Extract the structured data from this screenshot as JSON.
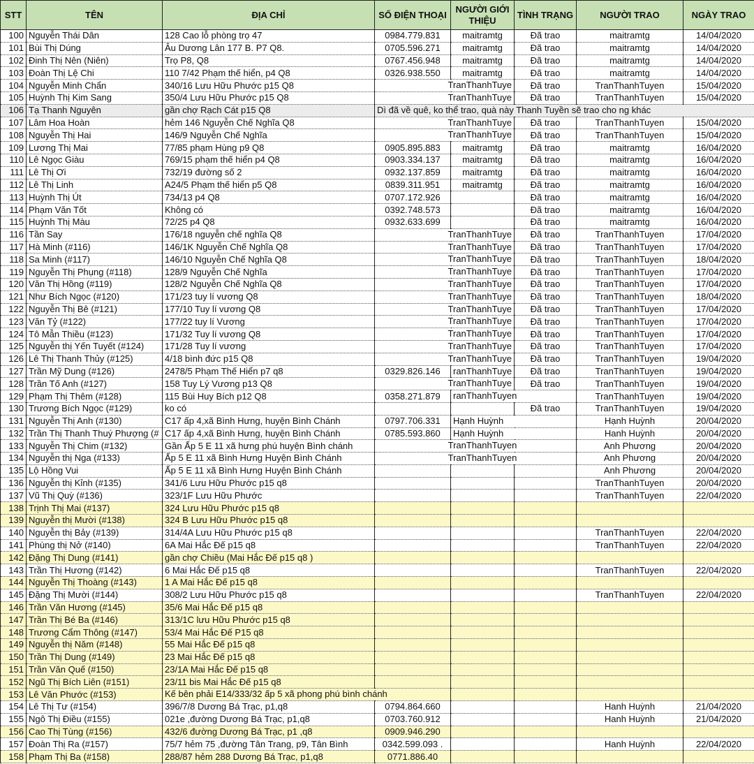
{
  "headers": [
    "STT",
    "TÊN",
    "ĐỊA CHỈ",
    "SỐ ĐIỆN THOẠI",
    "NGƯỜI GIỚI THIỆU",
    "TÌNH TRẠNG",
    "NGƯỜI TRAO",
    "NGÀY TRAO"
  ],
  "colors": {
    "header_bg": "#c6e0b4",
    "highlight_yellow": "#fdf9c6",
    "highlight_gray": "#ececec"
  },
  "rows": [
    {
      "stt": "100",
      "name": "Nguyễn Thái  Dân",
      "address": "128 Cao lỗ phòng trọ 47",
      "phone": "0984.779.831",
      "referrer": "maitramtg",
      "status": "Đã trao",
      "giver": "maitramtg",
      "date": "14/04/2020",
      "hl": ""
    },
    {
      "stt": "101",
      "name": " Bùi Thị Dúng",
      "address": "Âu Dương Lân 177 B. P7 Q8.",
      "phone": "0705.596.271",
      "referrer": "maitramtg",
      "status": "Đã trao",
      "giver": "maitramtg",
      "date": "14/04/2020",
      "hl": ""
    },
    {
      "stt": "102",
      "name": " Đinh Thị Nên (Niên)",
      "address": "Trọ P8, Q8",
      "phone": "0767.456.948",
      "referrer": "maitramtg",
      "status": "Đã trao",
      "giver": "maitramtg",
      "date": "14/04/2020",
      "hl": ""
    },
    {
      "stt": "103",
      "name": "Đoàn Thị Lệ Chi",
      "address": "110 7/42 Phạm thế hiển, p4 Q8",
      "phone": "0326.938.550",
      "referrer": "maitramtg",
      "status": "Đã trao",
      "giver": "maitramtg",
      "date": "14/04/2020",
      "hl": ""
    },
    {
      "stt": "104",
      "name": "Nguyễn Minh Chẩn",
      "address": "340/16 Lưu Hữu Phước p15 Q8",
      "phone": "",
      "referrer": "TranThanhTuye",
      "status": "Đã trao",
      "giver": "TranThanhTuyen",
      "date": "15/04/2020",
      "hl": ""
    },
    {
      "stt": "105",
      "name": "Huỳnh Thị Kim Sang",
      "address": "350/4 Lưu Hữu Phước p15 Q8",
      "phone": "",
      "referrer": "TranThanhTuye",
      "status": "Đã trao",
      "giver": "TranThanhTuyen",
      "date": "15/04/2020",
      "hl": ""
    },
    {
      "stt": "106",
      "name": "Tạ Thanh Nguyên",
      "address": "gần chợ Rạch Cát p15 Q8",
      "note": "Dì đã về quê, ko thể trao, quà này Thanh Tuyền sẽ trao cho ng khác",
      "hl": "g"
    },
    {
      "stt": "107",
      "name": "Lâm Hoa Hoàn",
      "address": "hẻm 146 Nguyễn Chế Nghĩa Q8",
      "phone": "",
      "referrer": "TranThanhTuye",
      "status": "Đã trao",
      "giver": "TranThanhTuyen",
      "date": "15/04/2020",
      "hl": ""
    },
    {
      "stt": "108",
      "name": "Nguyễn Thị Hai",
      "address": "146/9 Nguyễn Chế Nghĩa",
      "phone": "",
      "referrer": "TranThanhTuye",
      "status": "Đã trao",
      "giver": "TranThanhTuyen",
      "date": "15/04/2020",
      "hl": ""
    },
    {
      "stt": "109",
      "name": "Lương Thị Mai",
      "address": "77/85 phạm Hùng p9 Q8",
      "phone": "0905.895.883",
      "referrer": "maitramtg",
      "status": "Đã trao",
      "giver": "maitramtg",
      "date": "16/04/2020",
      "hl": ""
    },
    {
      "stt": "110",
      "name": "Lê Ngọc Giàu",
      "address": "769/15 phạm thế hiển p4 Q8",
      "phone": "0903.334.137",
      "referrer": "maitramtg",
      "status": "Đã trao",
      "giver": "maitramtg",
      "date": "16/04/2020",
      "hl": ""
    },
    {
      "stt": "111",
      "name": "Lê Thị Ơi",
      "address": "732/19 đường số 2",
      "phone": "0932.137.859",
      "referrer": "maitramtg",
      "status": "Đã trao",
      "giver": "maitramtg",
      "date": "16/04/2020",
      "hl": ""
    },
    {
      "stt": "112",
      "name": "Lê Thị Linh",
      "address": "A24/5 Phạm thế hiển p5 Q8",
      "phone": "0839.311.951",
      "referrer": "maitramtg",
      "status": "Đã trao",
      "giver": "maitramtg",
      "date": "16/04/2020",
      "hl": ""
    },
    {
      "stt": "113",
      "name": "Huỳnh Thị Út",
      "address": "734/13 p4 Q8",
      "phone": "0707.172.926",
      "referrer": "",
      "status": "Đã trao",
      "giver": "maitramtg",
      "date": "16/04/2020",
      "hl": ""
    },
    {
      "stt": "114",
      "name": "Phạm Văn Tốt",
      "address": "Không có",
      "phone": "0392.748.573",
      "referrer": "",
      "status": "Đã trao",
      "giver": "maitramtg",
      "date": "16/04/2020",
      "hl": ""
    },
    {
      "stt": "115",
      "name": "Huỳnh Thị Màu",
      "address": " 72/25 p4 Q8",
      "phone": "0932.633.699",
      "referrer": "",
      "status": "Đã trao",
      "giver": "maitramtg",
      "date": "16/04/2020",
      "hl": ""
    },
    {
      "stt": "116",
      "name": "Tần Say",
      "address": "176/18 nguyễn chế nghĩa Q8",
      "phone": "",
      "referrer": "TranThanhTuye",
      "status": "Đã trao",
      "giver": "TranThanhTuyen",
      "date": "17/04/2020",
      "hl": ""
    },
    {
      "stt": "117",
      "name": "Hà Minh (#116)",
      "address": "146/1K Nguyễn Chế Nghĩa Q8",
      "phone": "",
      "referrer": "TranThanhTuye",
      "status": "Đã trao",
      "giver": "TranThanhTuyen",
      "date": "17/04/2020",
      "hl": ""
    },
    {
      "stt": "118",
      "name": "Sa Minh (#117)",
      "address": "146/10 Nguyễn Chế Nghĩa Q8",
      "phone": "",
      "referrer": "TranThanhTuye",
      "status": "Đã trao",
      "giver": "TranThanhTuyen",
      "date": "18/04/2020",
      "hl": ""
    },
    {
      "stt": "119",
      "name": "Nguyễn Thị Phụng (#118)",
      "address": "128/9 Nguyễn Chế Nghĩa",
      "phone": "",
      "referrer": "TranThanhTuye",
      "status": "Đã trao",
      "giver": "TranThanhTuyen",
      "date": "17/04/2020",
      "hl": ""
    },
    {
      "stt": "120",
      "name": "Văn Thị Hồng (#119)",
      "address": "128/2 Nguyễn Chế Nghĩa Q8",
      "phone": "",
      "referrer": "TranThanhTuye",
      "status": "Đã trao",
      "giver": "TranThanhTuyen",
      "date": "17/04/2020",
      "hl": ""
    },
    {
      "stt": "121",
      "name": "Như Bích Ngọc (#120)",
      "address": "171/23 tuy lí vương Q8",
      "phone": "",
      "referrer": "TranThanhTuye",
      "status": "Đã trao",
      "giver": "TranThanhTuyen",
      "date": "18/04/2020",
      "hl": ""
    },
    {
      "stt": "122",
      "name": " Nguyễn Thị Bê (#121)",
      "address": "177/10 Tuy lí vương Q8",
      "phone": "",
      "referrer": "TranThanhTuye",
      "status": "Đã trao",
      "giver": "TranThanhTuyen",
      "date": "17/04/2020",
      "hl": ""
    },
    {
      "stt": "123",
      "name": "Văn Tỷ (#122)",
      "address": "177/22 tuy lí Vương",
      "phone": "",
      "referrer": "TranThanhTuye",
      "status": "Đã trao",
      "giver": "TranThanhTuyen",
      "date": "17/04/2020",
      "hl": ""
    },
    {
      "stt": "124",
      "name": "Tô Mẫn Thiều (#123)",
      "address": "171/32 Tuy lí vương Q8",
      "phone": "",
      "referrer": "TranThanhTuye",
      "status": "Đã trao",
      "giver": "TranThanhTuyen",
      "date": "17/04/2020",
      "hl": ""
    },
    {
      "stt": "125",
      "name": "Nguyễn thị Yến Tuyết (#124)",
      "address": "171/28 Tuy lí vương",
      "phone": "",
      "referrer": "TranThanhTuye",
      "status": "Đã trao",
      "giver": "TranThanhTuyen",
      "date": "17/04/2020",
      "hl": ""
    },
    {
      "stt": "126",
      "name": "Lê Thị Thanh Thủy (#125)",
      "address": "4/18 bình đức p15 Q8",
      "phone": "",
      "referrer": "TranThanhTuye",
      "status": "Đã trao",
      "giver": "TranThanhTuyen",
      "date": "19/04/2020",
      "hl": ""
    },
    {
      "stt": "127",
      "name": "Trần Mỹ Dung (#126)",
      "address": "2478/5 Phạm Thế Hiển p7 q8",
      "phone": "0329.826.146",
      "referrer": "ranThanhTuye",
      "status": "Đã trao",
      "giver": "TranThanhTuyen",
      "date": "19/04/2020",
      "hl": ""
    },
    {
      "stt": "128",
      "name": "Trần Tố Anh (#127)",
      "address": "158 Tuy Lý Vương p13 Q8",
      "phone": "",
      "referrer": "TranThanhTuye",
      "status": "Đã trao",
      "giver": "TranThanhTuyen",
      "date": "19/04/2020",
      "hl": ""
    },
    {
      "stt": "129",
      "name": "Phạm Thị Thêm (#128)",
      "address": "115 Bùi Huy Bích p12 Q8",
      "phone": "0358.271.879",
      "referrer": "ranThanhTuyen",
      "status": "",
      "giver": "TranThanhTuyen",
      "date": "19/04/2020",
      "hl": ""
    },
    {
      "stt": "130",
      "name": "Trương Bích Ngọc (#129)",
      "address": "ko có",
      "phone": "",
      "referrer": "",
      "status": "Đã trao",
      "giver": "TranThanhTuyen",
      "date": "19/04/2020",
      "hl": ""
    },
    {
      "stt": "131",
      "name": "Nguyễn Thị Anh (#130)",
      "address": "C17 ấp 4,xã Bình Hưng, huyện Bình Chánh",
      "phone": "0797.706.331",
      "referrer": "Hạnh Huỳnh",
      "status": "",
      "giver": "Hạnh Huỳnh",
      "date": "20/04/2020",
      "hl": ""
    },
    {
      "stt": "132",
      "name": "Trần Thị Thanh Thuý Phượng (#",
      "address": "C17 ấp 4,xã Bình Hưng, huyện Bình Chánh",
      "phone": "0785.593.860",
      "referrer": "Hạnh Huỳnh",
      "status": "",
      "giver": "Hanh Huỳnh",
      "date": "20/04/2020",
      "hl": ""
    },
    {
      "stt": "133",
      "name": "Nguyễn Thị Chim (#132)",
      "address": "Gần Ấp 5 E 11 xã hưng phú huyện Bình chánh",
      "phone": "",
      "referrer": "TranThanhTuyen",
      "status": "",
      "giver": "Anh Phương",
      "date": "20/04/2020",
      "hl": ""
    },
    {
      "stt": "134",
      "name": "Nguyễn thị Nga (#133)",
      "address": "Ấp 5 E 11 xã Bình Hưng Huyện Bình Chánh",
      "phone": "",
      "referrer": "TranThanhTuyen",
      "status": "",
      "giver": "Anh Phương",
      "date": "20/04/2020",
      "hl": ""
    },
    {
      "stt": "135",
      "name": "Lộ Hồng Vui",
      "address": "Ấp 5 E 11 xã Bình Hưng Huyện Bình Chánh",
      "phone": "",
      "referrer": "",
      "status": "",
      "giver": "Anh Phương",
      "date": "20/04/2020",
      "hl": ""
    },
    {
      "stt": "136",
      "name": "Nguyễn thị Kỉnh (#135)",
      "address": "341/6 Lưu Hữu Phước p15 q8",
      "phone": "",
      "referrer": "",
      "status": "",
      "giver": "TranThanhTuyen",
      "date": "20/04/2020",
      "hl": ""
    },
    {
      "stt": "137",
      "name": "Vũ Thị Quỳ (#136)",
      "address": "323/1F Lưu Hữu Phước",
      "phone": "",
      "referrer": "",
      "status": "",
      "giver": "TranThanhTuyen",
      "date": "22/04/2020",
      "hl": ""
    },
    {
      "stt": "138",
      "name": "Trịnh Thị Mai (#137)",
      "address": "324 Lưu Hữu Phước p15 q8",
      "phone": "",
      "referrer": "",
      "status": "",
      "giver": "",
      "date": "",
      "hl": "y"
    },
    {
      "stt": "139",
      "name": "Nguyễn thị Mười (#138)",
      "address": "324 B Lưu Hữu Phước p15 q8",
      "phone": "",
      "referrer": "",
      "status": "",
      "giver": "",
      "date": "",
      "hl": "y"
    },
    {
      "stt": "140",
      "name": "Nguyễn thị Bảy (#139)",
      "address": "314/4A Lưu Hữu Phước p15 q8",
      "phone": "",
      "referrer": "",
      "status": "",
      "giver": "TranThanhTuyen",
      "date": "22/04/2020",
      "hl": ""
    },
    {
      "stt": "141",
      "name": "Phùng thị Nở (#140)",
      "address": "6A Mai Hắc Đế p15 q8",
      "phone": "",
      "referrer": "",
      "status": "",
      "giver": "TranThanhTuyen",
      "date": "22/04/2020",
      "hl": ""
    },
    {
      "stt": "142",
      "name": "Đặng Thị Dung (#141)",
      "address": "gần chợ Chiều (Mai Hắc Đế p15 q8 )",
      "phone": "",
      "referrer": "",
      "status": "",
      "giver": "",
      "date": "",
      "hl": "y"
    },
    {
      "stt": "143",
      "name": "Trần Thị Hương (#142)",
      "address": "6 Mai Hắc Đế p15 q8",
      "phone": "",
      "referrer": "",
      "status": "",
      "giver": "TranThanhTuyen",
      "date": "22/04/2020",
      "hl": ""
    },
    {
      "stt": "144",
      "name": "Nguyễn Thị Thoàng (#143)",
      "address": "1 A Mai Hắc Đế p15 q8",
      "phone": "",
      "referrer": "",
      "status": "",
      "giver": "",
      "date": "",
      "hl": "y"
    },
    {
      "stt": "145",
      "name": "Đặng Thị Mười (#144)",
      "address": "308/2 Lưu Hữu Phước p15 q8",
      "phone": "",
      "referrer": "",
      "status": "",
      "giver": "TranThanhTuyen",
      "date": "22/04/2020",
      "hl": ""
    },
    {
      "stt": "146",
      "name": "Trần Văn Hương (#145)",
      "address": "35/6 Mai Hắc Đế p15 q8",
      "phone": "",
      "referrer": "",
      "status": "",
      "giver": "",
      "date": "",
      "hl": "y"
    },
    {
      "stt": "147",
      "name": "Trần Thị Bé Ba (#146)",
      "address": "313/1C lưu Hữu Phước p15 q8",
      "phone": "",
      "referrer": "",
      "status": "",
      "giver": "",
      "date": "",
      "hl": "y"
    },
    {
      "stt": "148",
      "name": "Trương Cẩm Thông (#147)",
      "address": "53/4 Mai Hắc Đế P15 q8",
      "phone": "",
      "referrer": "",
      "status": "",
      "giver": "",
      "date": "",
      "hl": "y"
    },
    {
      "stt": "149",
      "name": "Nguyễn thị Năm (#148)",
      "address": "55 Mai Hắc Đế p15 q8",
      "phone": "",
      "referrer": "",
      "status": "",
      "giver": "",
      "date": "",
      "hl": "y"
    },
    {
      "stt": "150",
      "name": "Trần Thị Dung (#149)",
      "address": "23 Mai Hắc Đế  p15 q8",
      "phone": "",
      "referrer": "",
      "status": "",
      "giver": "",
      "date": "",
      "hl": "y"
    },
    {
      "stt": "151",
      "name": "Trần Văn Quế (#150)",
      "address": "23/1A Mai Hắc Đế p15 q8",
      "phone": "",
      "referrer": "",
      "status": "",
      "giver": "",
      "date": "",
      "hl": "y"
    },
    {
      "stt": "152",
      "name": "Ngũ Thị Bích Liên (#151)",
      "address": "23/11 bis Mai Hắc Đế p15 q8",
      "phone": "",
      "referrer": "",
      "status": "",
      "giver": "",
      "date": "",
      "hl": "y"
    },
    {
      "stt": "153",
      "name": "Lê Văn Phước (#153)",
      "address": "Kế bên phải E14/333/32 ấp 5 xã phong phú bình chánh",
      "phone": "",
      "referrer": "",
      "status": "",
      "giver": "",
      "date": "",
      "hl": "y"
    },
    {
      "stt": "154",
      "name": "Lê Thị Tư (#154)",
      "address": "396/7/8 Dương Bá Trạc, p1,q8",
      "phone": "0794.864.660",
      "referrer": "",
      "status": "",
      "giver": "Hanh Huỳnh",
      "date": "21/04/2020",
      "hl": ""
    },
    {
      "stt": "155",
      "name": "Ngô Thị Điều (#155)",
      "address": "021e ,đường Dương Bá Trạc, p1,q8",
      "phone": "0703.760.912",
      "referrer": "",
      "status": "",
      "giver": "Hanh Huỳnh",
      "date": "21/04/2020",
      "hl": ""
    },
    {
      "stt": "156",
      "name": "Cao Thị Tùng (#156)",
      "address": "432/6 đường Dương Bá Trạc, p1 ,q8",
      "phone": "0909.946.290",
      "referrer": "",
      "status": "",
      "giver": "",
      "date": "",
      "hl": "y"
    },
    {
      "stt": "157",
      "name": "Đoàn Thị Ra (#157)",
      "address": "75/7 hẻm 75 ,đường Tân Trang, p9, Tân Bình",
      "phone": "0342.599.093 .",
      "referrer": "",
      "status": "",
      "giver": "Hanh Huỳnh",
      "date": "22/04/2020",
      "hl": ""
    },
    {
      "stt": "158",
      "name": "Phạm Thị Ba (#158)",
      "address": "288/87 hẻm 288 Dương Bá Trạc, p1,q8",
      "phone": "0771.886.40",
      "referrer": "",
      "status": "",
      "giver": "",
      "date": "",
      "hl": "y"
    }
  ]
}
